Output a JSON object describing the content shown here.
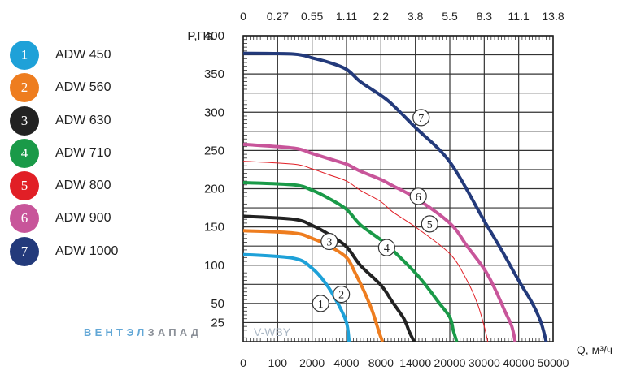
{
  "legend": [
    {
      "num": "1",
      "label": "ADW 450",
      "color": "#1ea1d8"
    },
    {
      "num": "2",
      "label": "ADW 560",
      "color": "#ee7d1f"
    },
    {
      "num": "3",
      "label": "ADW 630",
      "color": "#222222"
    },
    {
      "num": "4",
      "label": "ADW 710",
      "color": "#1a9a48"
    },
    {
      "num": "5",
      "label": "ADW 800",
      "color": "#e11f26"
    },
    {
      "num": "6",
      "label": "ADW 900",
      "color": "#c8559a"
    },
    {
      "num": "7",
      "label": "ADW 1000",
      "color": "#233a7b"
    }
  ],
  "watermark": {
    "brand_part1": "ВЕНТЭЛ",
    "brand_part2": "ЗАПАД",
    "brand_color1": "#62a7d6",
    "brand_color2": "#8b9098",
    "site": "V-WBY"
  },
  "chart_data": {
    "type": "line",
    "xlabel": "Q, м³/ч",
    "ylabel": "P,Па",
    "y_ticks": [
      "400",
      "350",
      "300",
      "250",
      "200",
      "150",
      "100",
      "50",
      "25"
    ],
    "y_tick_values": [
      400,
      350,
      300,
      250,
      200,
      150,
      100,
      50,
      25
    ],
    "x_ticks_bottom": [
      "0",
      "100",
      "2000",
      "4000",
      "8000",
      "14000",
      "20000",
      "30000",
      "40000",
      "50000"
    ],
    "x_ticks_top": [
      "0",
      "0.27",
      "0.55",
      "1.11",
      "2.2",
      "3.8",
      "5.5",
      "8.3",
      "11.1",
      "13.8"
    ],
    "grid": true,
    "series": [
      {
        "label": "1",
        "color": "#1ea1d8",
        "stroke_width": 4,
        "points": [
          [
            0,
            114
          ],
          [
            1000,
            109
          ],
          [
            2000,
            96
          ],
          [
            2800,
            76
          ],
          [
            3500,
            50
          ],
          [
            4000,
            25
          ],
          [
            4300,
            0
          ]
        ],
        "marker": [
          2500,
          50
        ]
      },
      {
        "label": "2",
        "color": "#ee7d1f",
        "stroke_width": 4,
        "points": [
          [
            0,
            145
          ],
          [
            1000,
            142
          ],
          [
            2000,
            135
          ],
          [
            3000,
            125
          ],
          [
            4000,
            110
          ],
          [
            5000,
            90
          ],
          [
            6000,
            67
          ],
          [
            7000,
            40
          ],
          [
            7800,
            12
          ],
          [
            8300,
            0
          ]
        ],
        "marker": [
          3700,
          62
        ]
      },
      {
        "label": "3",
        "color": "#222222",
        "stroke_width": 4,
        "points": [
          [
            0,
            164
          ],
          [
            1000,
            160
          ],
          [
            2000,
            152
          ],
          [
            3000,
            140
          ],
          [
            4000,
            124
          ],
          [
            5600,
            100
          ],
          [
            8000,
            74
          ],
          [
            10000,
            52
          ],
          [
            12000,
            30
          ],
          [
            13000,
            12
          ],
          [
            13800,
            0
          ]
        ],
        "marker": [
          3000,
          131
        ]
      },
      {
        "label": "4",
        "color": "#1a9a48",
        "stroke_width": 4,
        "points": [
          [
            0,
            208
          ],
          [
            1000,
            205
          ],
          [
            2000,
            198
          ],
          [
            3000,
            187
          ],
          [
            4000,
            173
          ],
          [
            5600,
            153
          ],
          [
            8000,
            133
          ],
          [
            10000,
            120
          ],
          [
            14000,
            90
          ],
          [
            16000,
            72
          ],
          [
            18000,
            52
          ],
          [
            20000,
            32
          ],
          [
            21000,
            15
          ],
          [
            22000,
            0
          ]
        ],
        "marker": [
          9000,
          123
        ]
      },
      {
        "label": "5",
        "color": "#e11f26",
        "stroke_width": 1,
        "points": [
          [
            0,
            236
          ],
          [
            1000,
            232
          ],
          [
            2000,
            226
          ],
          [
            3000,
            218
          ],
          [
            4000,
            210
          ],
          [
            5600,
            198
          ],
          [
            8000,
            183
          ],
          [
            10000,
            170
          ],
          [
            14000,
            150
          ],
          [
            20000,
            115
          ],
          [
            25000,
            80
          ],
          [
            28000,
            50
          ],
          [
            30000,
            20
          ],
          [
            31000,
            0
          ]
        ],
        "marker": [
          16500,
          154
        ]
      },
      {
        "label": "6",
        "color": "#c8559a",
        "stroke_width": 4,
        "points": [
          [
            0,
            258
          ],
          [
            1000,
            253
          ],
          [
            2000,
            246
          ],
          [
            3000,
            239
          ],
          [
            4000,
            232
          ],
          [
            5600,
            223
          ],
          [
            8000,
            212
          ],
          [
            10000,
            204
          ],
          [
            14000,
            188
          ],
          [
            20000,
            155
          ],
          [
            25000,
            125
          ],
          [
            30000,
            95
          ],
          [
            33000,
            70
          ],
          [
            36000,
            40
          ],
          [
            38000,
            20
          ],
          [
            39000,
            0
          ]
        ],
        "marker": [
          14500,
          190
        ]
      },
      {
        "label": "7",
        "color": "#233a7b",
        "stroke_width": 4,
        "points": [
          [
            0,
            377
          ],
          [
            1000,
            376
          ],
          [
            2000,
            371
          ],
          [
            3000,
            365
          ],
          [
            4000,
            356
          ],
          [
            5600,
            340
          ],
          [
            8000,
            322
          ],
          [
            10000,
            310
          ],
          [
            14000,
            280
          ],
          [
            20000,
            235
          ],
          [
            30000,
            158
          ],
          [
            35000,
            120
          ],
          [
            40000,
            80
          ],
          [
            44000,
            50
          ],
          [
            46500,
            25
          ],
          [
            48000,
            0
          ]
        ],
        "marker": [
          15000,
          293
        ]
      }
    ]
  }
}
